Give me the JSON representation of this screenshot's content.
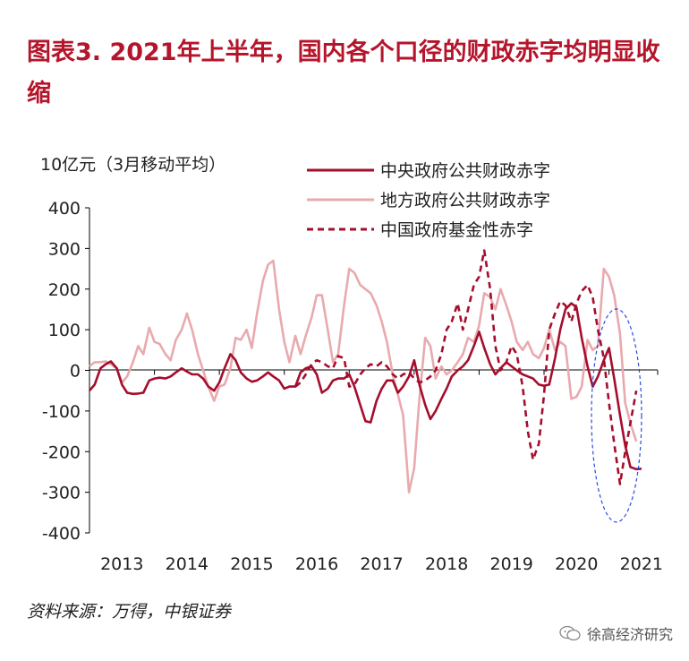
{
  "title": "图表3.  2021年上半年，国内各个口径的财政赤字均明显收缩",
  "source": "资料来源：万得，中银证券",
  "watermark": "徐高经济研究",
  "chart_data": {
    "type": "line",
    "ylabel": "10亿元（3月移动平均）",
    "ylim": [
      -400,
      400
    ],
    "yticks": [
      400,
      300,
      200,
      100,
      0,
      -100,
      -200,
      -300,
      -400
    ],
    "xlim": [
      2013.0,
      2021.75
    ],
    "xticks": [
      "2013",
      "2014",
      "2015",
      "2016",
      "2017",
      "2018",
      "2019",
      "2020",
      "2021"
    ],
    "legend_position": "top-right",
    "grid": false,
    "series": [
      {
        "name": "中央政府公共财政赤字",
        "color": "#a50d2d",
        "style": "solid",
        "points": [
          [
            2013.0,
            -50
          ],
          [
            2013.08,
            -35
          ],
          [
            2013.17,
            5
          ],
          [
            2013.25,
            15
          ],
          [
            2013.33,
            22
          ],
          [
            2013.42,
            5
          ],
          [
            2013.5,
            -35
          ],
          [
            2013.58,
            -55
          ],
          [
            2013.67,
            -58
          ],
          [
            2013.75,
            -57
          ],
          [
            2013.83,
            -55
          ],
          [
            2013.92,
            -25
          ],
          [
            2014.0,
            -20
          ],
          [
            2014.08,
            -18
          ],
          [
            2014.17,
            -20
          ],
          [
            2014.25,
            -15
          ],
          [
            2014.33,
            -5
          ],
          [
            2014.42,
            5
          ],
          [
            2014.5,
            -3
          ],
          [
            2014.58,
            -10
          ],
          [
            2014.67,
            -10
          ],
          [
            2014.75,
            -20
          ],
          [
            2014.83,
            -40
          ],
          [
            2014.92,
            -50
          ],
          [
            2015.0,
            -30
          ],
          [
            2015.08,
            5
          ],
          [
            2015.17,
            40
          ],
          [
            2015.25,
            25
          ],
          [
            2015.33,
            -5
          ],
          [
            2015.42,
            -20
          ],
          [
            2015.5,
            -28
          ],
          [
            2015.58,
            -25
          ],
          [
            2015.67,
            -15
          ],
          [
            2015.75,
            -5
          ],
          [
            2015.83,
            -15
          ],
          [
            2015.92,
            -25
          ],
          [
            2016.0,
            -45
          ],
          [
            2016.08,
            -40
          ],
          [
            2016.17,
            -40
          ],
          [
            2016.25,
            -5
          ],
          [
            2016.33,
            5
          ],
          [
            2016.42,
            10
          ],
          [
            2016.5,
            -10
          ],
          [
            2016.58,
            -55
          ],
          [
            2016.67,
            -45
          ],
          [
            2016.75,
            -25
          ],
          [
            2016.83,
            -20
          ],
          [
            2016.92,
            -20
          ],
          [
            2017.0,
            -10
          ],
          [
            2017.08,
            -40
          ],
          [
            2017.17,
            -85
          ],
          [
            2017.25,
            -125
          ],
          [
            2017.33,
            -128
          ],
          [
            2017.42,
            -75
          ],
          [
            2017.5,
            -45
          ],
          [
            2017.58,
            -25
          ],
          [
            2017.67,
            -25
          ],
          [
            2017.75,
            -55
          ],
          [
            2017.83,
            -40
          ],
          [
            2017.92,
            -15
          ],
          [
            2018.0,
            25
          ],
          [
            2018.08,
            -35
          ],
          [
            2018.17,
            -85
          ],
          [
            2018.25,
            -120
          ],
          [
            2018.33,
            -100
          ],
          [
            2018.42,
            -70
          ],
          [
            2018.5,
            -45
          ],
          [
            2018.58,
            -15
          ],
          [
            2018.67,
            0
          ],
          [
            2018.75,
            10
          ],
          [
            2018.83,
            25
          ],
          [
            2018.92,
            60
          ],
          [
            2019.0,
            95
          ],
          [
            2019.08,
            55
          ],
          [
            2019.17,
            15
          ],
          [
            2019.25,
            -10
          ],
          [
            2019.33,
            5
          ],
          [
            2019.42,
            20
          ],
          [
            2019.5,
            10
          ],
          [
            2019.58,
            0
          ],
          [
            2019.67,
            -10
          ],
          [
            2019.75,
            -15
          ],
          [
            2019.83,
            -20
          ],
          [
            2019.92,
            -35
          ],
          [
            2020.0,
            -38
          ],
          [
            2020.08,
            -35
          ],
          [
            2020.17,
            30
          ],
          [
            2020.25,
            100
          ],
          [
            2020.33,
            150
          ],
          [
            2020.42,
            165
          ],
          [
            2020.5,
            155
          ],
          [
            2020.58,
            80
          ],
          [
            2020.67,
            10
          ],
          [
            2020.75,
            -40
          ],
          [
            2020.83,
            -15
          ],
          [
            2020.92,
            25
          ],
          [
            2021.0,
            55
          ],
          [
            2021.08,
            -20
          ],
          [
            2021.17,
            -110
          ],
          [
            2021.25,
            -185
          ],
          [
            2021.33,
            -238
          ],
          [
            2021.42,
            -243
          ],
          [
            2021.5,
            -242
          ]
        ]
      },
      {
        "name": "地方政府公共财政赤字",
        "color": "#e8aaae",
        "style": "solid",
        "points": [
          [
            2013.0,
            10
          ],
          [
            2013.08,
            20
          ],
          [
            2013.17,
            20
          ],
          [
            2013.25,
            22
          ],
          [
            2013.33,
            15
          ],
          [
            2013.42,
            5
          ],
          [
            2013.5,
            -30
          ],
          [
            2013.58,
            -15
          ],
          [
            2013.67,
            20
          ],
          [
            2013.75,
            60
          ],
          [
            2013.83,
            40
          ],
          [
            2013.92,
            105
          ],
          [
            2014.0,
            70
          ],
          [
            2014.08,
            65
          ],
          [
            2014.17,
            40
          ],
          [
            2014.25,
            25
          ],
          [
            2014.33,
            75
          ],
          [
            2014.42,
            100
          ],
          [
            2014.5,
            140
          ],
          [
            2014.58,
            100
          ],
          [
            2014.67,
            40
          ],
          [
            2014.75,
            0
          ],
          [
            2014.83,
            -40
          ],
          [
            2014.92,
            -75
          ],
          [
            2015.0,
            -40
          ],
          [
            2015.08,
            -35
          ],
          [
            2015.17,
            5
          ],
          [
            2015.25,
            80
          ],
          [
            2015.33,
            75
          ],
          [
            2015.42,
            100
          ],
          [
            2015.5,
            55
          ],
          [
            2015.58,
            140
          ],
          [
            2015.67,
            220
          ],
          [
            2015.75,
            260
          ],
          [
            2015.83,
            270
          ],
          [
            2015.92,
            150
          ],
          [
            2016.0,
            70
          ],
          [
            2016.08,
            20
          ],
          [
            2016.17,
            85
          ],
          [
            2016.25,
            40
          ],
          [
            2016.33,
            85
          ],
          [
            2016.42,
            130
          ],
          [
            2016.5,
            185
          ],
          [
            2016.58,
            185
          ],
          [
            2016.67,
            100
          ],
          [
            2016.75,
            20
          ],
          [
            2016.83,
            40
          ],
          [
            2016.92,
            160
          ],
          [
            2017.0,
            250
          ],
          [
            2017.08,
            240
          ],
          [
            2017.17,
            210
          ],
          [
            2017.25,
            200
          ],
          [
            2017.33,
            190
          ],
          [
            2017.42,
            160
          ],
          [
            2017.5,
            120
          ],
          [
            2017.58,
            70
          ],
          [
            2017.67,
            -10
          ],
          [
            2017.75,
            -60
          ],
          [
            2017.83,
            -110
          ],
          [
            2017.92,
            -300
          ],
          [
            2018.0,
            -240
          ],
          [
            2018.08,
            -70
          ],
          [
            2018.17,
            80
          ],
          [
            2018.25,
            60
          ],
          [
            2018.33,
            -20
          ],
          [
            2018.42,
            10
          ],
          [
            2018.5,
            -10
          ],
          [
            2018.58,
            0
          ],
          [
            2018.67,
            20
          ],
          [
            2018.75,
            40
          ],
          [
            2018.83,
            80
          ],
          [
            2018.92,
            70
          ],
          [
            2019.0,
            110
          ],
          [
            2019.08,
            190
          ],
          [
            2019.17,
            180
          ],
          [
            2019.25,
            150
          ],
          [
            2019.33,
            200
          ],
          [
            2019.42,
            160
          ],
          [
            2019.5,
            120
          ],
          [
            2019.58,
            70
          ],
          [
            2019.67,
            50
          ],
          [
            2019.75,
            70
          ],
          [
            2019.83,
            40
          ],
          [
            2019.92,
            30
          ],
          [
            2020.0,
            55
          ],
          [
            2020.08,
            100
          ],
          [
            2020.17,
            50
          ],
          [
            2020.25,
            70
          ],
          [
            2020.33,
            60
          ],
          [
            2020.42,
            -70
          ],
          [
            2020.5,
            -65
          ],
          [
            2020.58,
            -40
          ],
          [
            2020.67,
            75
          ],
          [
            2020.75,
            50
          ],
          [
            2020.83,
            60
          ],
          [
            2020.92,
            250
          ],
          [
            2021.0,
            230
          ],
          [
            2021.08,
            185
          ],
          [
            2021.17,
            90
          ],
          [
            2021.25,
            -80
          ],
          [
            2021.33,
            -130
          ],
          [
            2021.42,
            -175
          ]
        ]
      },
      {
        "name": "中国政府基金性赤字",
        "color": "#a50d2d",
        "style": "dashed",
        "points": [
          [
            2016.17,
            -40
          ],
          [
            2016.25,
            -30
          ],
          [
            2016.33,
            -10
          ],
          [
            2016.42,
            15
          ],
          [
            2016.5,
            25
          ],
          [
            2016.58,
            20
          ],
          [
            2016.67,
            10
          ],
          [
            2016.75,
            5
          ],
          [
            2016.83,
            35
          ],
          [
            2016.92,
            30
          ],
          [
            2017.0,
            -40
          ],
          [
            2017.08,
            -35
          ],
          [
            2017.17,
            -10
          ],
          [
            2017.25,
            5
          ],
          [
            2017.33,
            15
          ],
          [
            2017.42,
            10
          ],
          [
            2017.5,
            20
          ],
          [
            2017.58,
            10
          ],
          [
            2017.67,
            -10
          ],
          [
            2017.75,
            -20
          ],
          [
            2017.83,
            -10
          ],
          [
            2017.92,
            -5
          ],
          [
            2018.0,
            -20
          ],
          [
            2018.08,
            -30
          ],
          [
            2018.17,
            -25
          ],
          [
            2018.25,
            -15
          ],
          [
            2018.33,
            0
          ],
          [
            2018.42,
            40
          ],
          [
            2018.5,
            100
          ],
          [
            2018.58,
            120
          ],
          [
            2018.67,
            165
          ],
          [
            2018.75,
            100
          ],
          [
            2018.83,
            150
          ],
          [
            2018.92,
            210
          ],
          [
            2019.0,
            230
          ],
          [
            2019.08,
            295
          ],
          [
            2019.17,
            200
          ],
          [
            2019.25,
            60
          ],
          [
            2019.33,
            0
          ],
          [
            2019.42,
            20
          ],
          [
            2019.5,
            60
          ],
          [
            2019.58,
            40
          ],
          [
            2019.67,
            -40
          ],
          [
            2019.75,
            -150
          ],
          [
            2019.83,
            -220
          ],
          [
            2019.92,
            -180
          ],
          [
            2020.0,
            -60
          ],
          [
            2020.08,
            100
          ],
          [
            2020.17,
            140
          ],
          [
            2020.25,
            170
          ],
          [
            2020.33,
            160
          ],
          [
            2020.42,
            120
          ],
          [
            2020.5,
            165
          ],
          [
            2020.58,
            195
          ],
          [
            2020.67,
            210
          ],
          [
            2020.75,
            180
          ],
          [
            2020.83,
            100
          ],
          [
            2020.92,
            30
          ],
          [
            2021.0,
            -80
          ],
          [
            2021.08,
            -180
          ],
          [
            2021.17,
            -280
          ],
          [
            2021.25,
            -200
          ],
          [
            2021.33,
            -130
          ],
          [
            2021.42,
            -50
          ]
        ]
      }
    ]
  }
}
